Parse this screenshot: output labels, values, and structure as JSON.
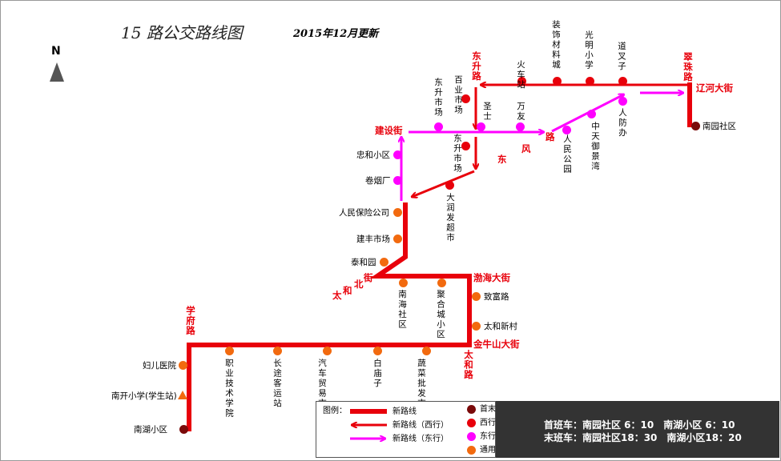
{
  "title": "15 路公交路线图",
  "subtitle": "2015年12月更新",
  "north": "N",
  "colors": {
    "west_line": "#e8000b",
    "east_line": "#ff00ff",
    "common_stop": "#f26a0f",
    "terminal": "#7a0a0a",
    "street_label": "#e8000b"
  },
  "streets": {
    "dongsheng": "东升路",
    "cuizhu": "翠珠路",
    "liaohe": "辽河大街",
    "jianshe": "建设街",
    "dongfeng": [
      "东",
      "风",
      "路"
    ],
    "taihebei": [
      "太",
      "和",
      "北",
      "街"
    ],
    "bohai": "渤海大街",
    "jinniushan": "金牛山大街",
    "taihe": "太和路",
    "xuefu": "学府路"
  },
  "terminals": [
    "南园社区",
    "南湖小区"
  ],
  "west_stops": [
    "火车站",
    "装饰材料城",
    "光明小学",
    "道叉子",
    "百业市场",
    "东升市场",
    "大润发超市"
  ],
  "east_stops": [
    "东升市场",
    "圣士",
    "万友",
    "人民公园",
    "中天御景湾",
    "人防办",
    "忠和小区",
    "卷烟厂"
  ],
  "common_stops": [
    "人民保险公司",
    "建丰市场",
    "泰和园",
    "南海社区",
    "聚合城小区",
    "致富路",
    "太和新村",
    "职业技术学院",
    "长途客运站",
    "汽车贸易市场",
    "白庙子",
    "蔬菜批发市场",
    "妇儿医院",
    "南开小学(学生站)"
  ],
  "legend": {
    "title": "图例：",
    "line_new": "新路线",
    "line_west": "新路线（西行）",
    "line_east": "新路线（东行）",
    "stop_terminal": "首末站",
    "stop_west": "西行站",
    "stop_east": "东行站",
    "stop_common": "通用站"
  },
  "schedule": {
    "first": "首班车：南园社区 6：10　南湖小区 6：10",
    "last": "末班车：南园社区18：30　南湖小区18：20"
  }
}
